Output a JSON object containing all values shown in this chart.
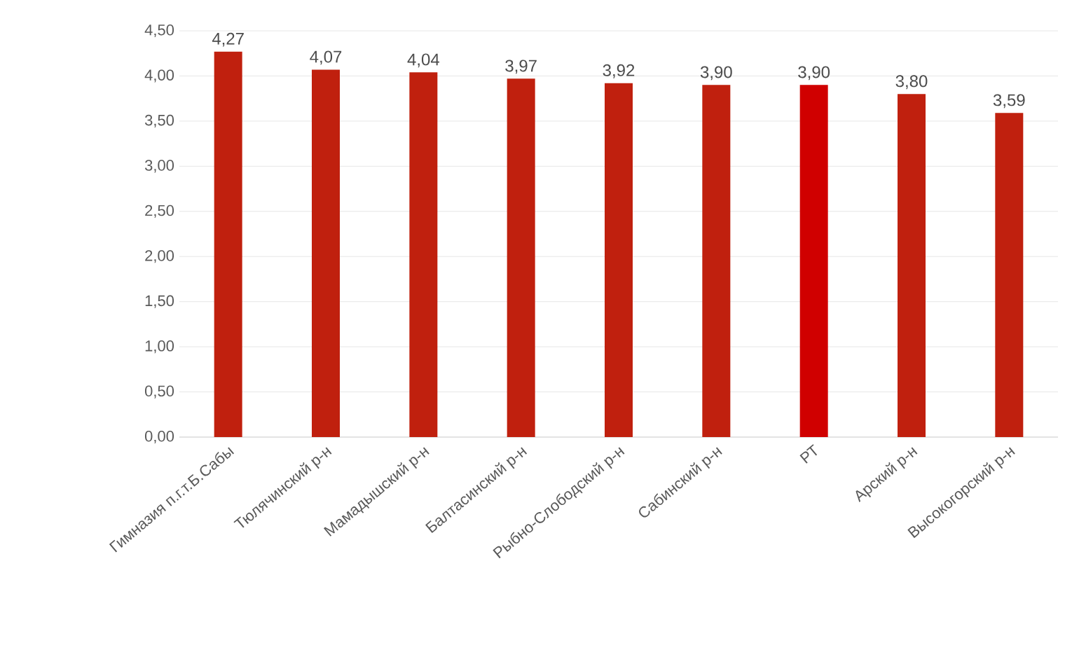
{
  "chart_data": {
    "type": "bar",
    "categories": [
      "Гимназия п.г.т.Б.Сабы",
      "Тюлячинский р-н",
      "Мамадышский р-н",
      "Балтасинский р-н",
      "Рыбно-Слободский р-н",
      "Сабинский р-н",
      "РТ",
      "Арский р-н",
      "Высокогорский р-н"
    ],
    "values": [
      4.27,
      4.07,
      4.04,
      3.97,
      3.92,
      3.9,
      3.9,
      3.8,
      3.59
    ],
    "value_labels": [
      "4,27",
      "4,07",
      "4,04",
      "3,97",
      "3,92",
      "3,90",
      "3,90",
      "3,80",
      "3,59"
    ],
    "colors": [
      "#c0200e",
      "#c0200e",
      "#c0200e",
      "#c0200e",
      "#c0200e",
      "#c0200e",
      "#d00000",
      "#c0200e",
      "#c0200e"
    ],
    "ylim": [
      0,
      4.5
    ],
    "yticks": [
      {
        "value": 0,
        "label": "0,00"
      },
      {
        "value": 0.5,
        "label": "0,50"
      },
      {
        "value": 1,
        "label": "1,00"
      },
      {
        "value": 1.5,
        "label": "1,50"
      },
      {
        "value": 2,
        "label": "2,00"
      },
      {
        "value": 2.5,
        "label": "2,50"
      },
      {
        "value": 3,
        "label": "3,00"
      },
      {
        "value": 3.5,
        "label": "3,50"
      },
      {
        "value": 4,
        "label": "4,00"
      },
      {
        "value": 4.5,
        "label": "4,50"
      }
    ],
    "grid": "y"
  }
}
